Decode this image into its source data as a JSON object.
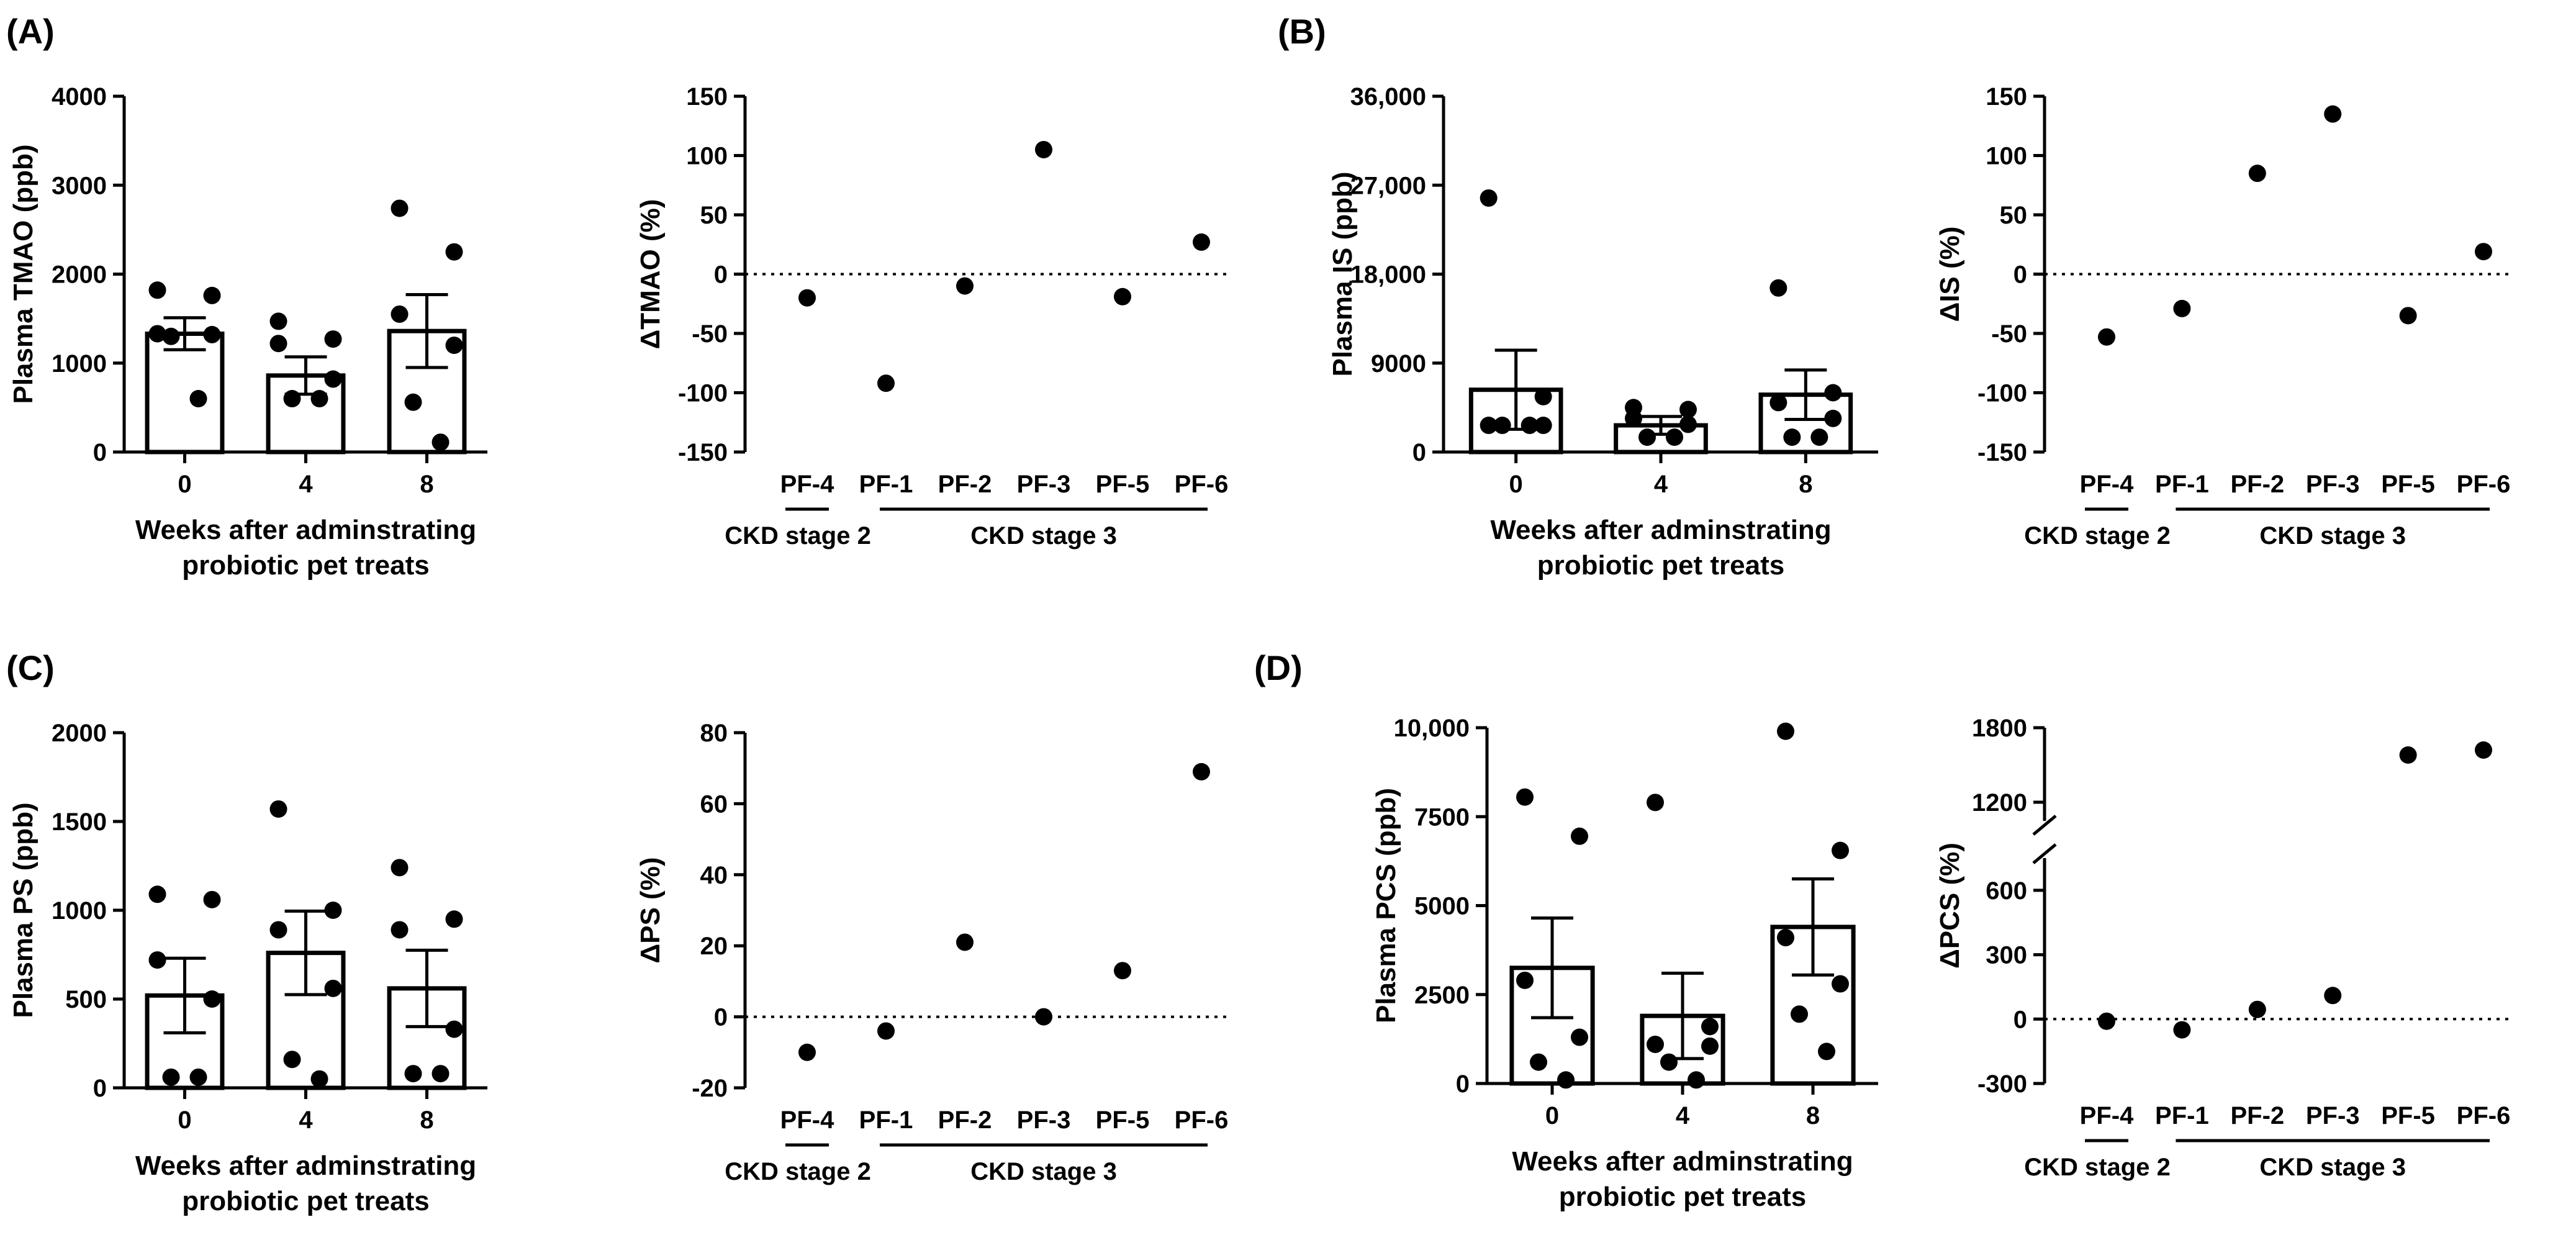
{
  "panels": [
    {
      "letter": "(A)",
      "bar": {
        "ylabel": "Plasma TMAO (ppb)",
        "yticks": [
          "0",
          "1000",
          "2000",
          "3000",
          "4000"
        ],
        "ylim": [
          0,
          4000
        ],
        "categories": [
          "0",
          "4",
          "8"
        ],
        "xlabel": [
          "Weeks after adminstrating",
          "probiotic pet treats"
        ],
        "means": [
          1330,
          860,
          1360
        ],
        "sem": [
          180,
          210,
          410
        ],
        "points": [
          [
            1820,
            1760,
            1330,
            1320,
            1300,
            600
          ],
          [
            1470,
            1270,
            1220,
            820,
            600,
            600
          ],
          [
            2740,
            2250,
            1550,
            1200,
            560,
            110
          ]
        ]
      },
      "delta": {
        "ylabel": "ΔTMAO (%)",
        "yticks": [
          "-150",
          "-100",
          "-50",
          "0",
          "50",
          "100",
          "150"
        ],
        "ylim": [
          -150,
          150
        ],
        "categories": [
          "PF-4",
          "PF-1",
          "PF-2",
          "PF-3",
          "PF-5",
          "PF-6"
        ],
        "values": [
          -20,
          -92,
          -10,
          105,
          -19,
          27
        ],
        "groups": [
          "CKD stage 2",
          "CKD stage 3"
        ]
      }
    },
    {
      "letter": "(B)",
      "bar": {
        "ylabel": "Plasma IS (ppb)",
        "yticks": [
          "0",
          "9000",
          "18,000",
          "27,000",
          "36,000"
        ],
        "ylim": [
          0,
          36000
        ],
        "categories": [
          "0",
          "4",
          "8"
        ],
        "xlabel": [
          "Weeks after adminstrating",
          "probiotic pet treats"
        ],
        "means": [
          6300,
          2700,
          5800
        ],
        "sem": [
          4000,
          900,
          2500
        ],
        "points": [
          [
            25700,
            5600,
            2700,
            2700,
            2700,
            2700
          ],
          [
            4500,
            4300,
            3400,
            2800,
            1500,
            1500
          ],
          [
            16600,
            6000,
            5000,
            3400,
            1500,
            1500
          ]
        ]
      },
      "delta": {
        "ylabel": "ΔIS (%)",
        "yticks": [
          "-150",
          "-100",
          "-50",
          "0",
          "50",
          "100",
          "150"
        ],
        "ylim": [
          -150,
          150
        ],
        "categories": [
          "PF-4",
          "PF-1",
          "PF-2",
          "PF-3",
          "PF-5",
          "PF-6"
        ],
        "values": [
          -53,
          -29,
          85,
          135,
          -35,
          19
        ],
        "groups": [
          "CKD stage 2",
          "CKD stage 3"
        ]
      }
    },
    {
      "letter": "(C)",
      "bar": {
        "ylabel": "Plasma PS (ppb)",
        "yticks": [
          "0",
          "500",
          "1000",
          "1500",
          "2000"
        ],
        "ylim": [
          0,
          2000
        ],
        "categories": [
          "0",
          "4",
          "8"
        ],
        "xlabel": [
          "Weeks after adminstrating",
          "probiotic pet treats"
        ],
        "means": [
          520,
          760,
          560
        ],
        "sem": [
          210,
          235,
          215
        ],
        "points": [
          [
            1090,
            1060,
            720,
            500,
            60,
            60
          ],
          [
            1570,
            1000,
            890,
            560,
            160,
            50
          ],
          [
            1240,
            950,
            890,
            330,
            80,
            80
          ]
        ]
      },
      "delta": {
        "ylabel": "ΔPS (%)",
        "yticks": [
          "-20",
          "0",
          "20",
          "40",
          "60",
          "80"
        ],
        "ylim": [
          -20,
          80
        ],
        "categories": [
          "PF-4",
          "PF-1",
          "PF-2",
          "PF-3",
          "PF-5",
          "PF-6"
        ],
        "values": [
          -10,
          -4,
          21,
          0,
          13,
          69
        ],
        "groups": [
          "CKD stage 2",
          "CKD stage 3"
        ]
      }
    },
    {
      "letter": "(D)",
      "bar": {
        "ylabel": "Plasma PCS (ppb)",
        "yticks": [
          "0",
          "2500",
          "5000",
          "7500",
          "10,000"
        ],
        "ylim": [
          0,
          10000
        ],
        "categories": [
          "0",
          "4",
          "8"
        ],
        "xlabel": [
          "Weeks after adminstrating",
          "probiotic pet treats"
        ],
        "means": [
          3250,
          1900,
          4400
        ],
        "sem": [
          1400,
          1200,
          1350
        ],
        "points": [
          [
            8050,
            6950,
            2900,
            1300,
            600,
            100
          ],
          [
            7900,
            1600,
            1100,
            1050,
            600,
            100
          ],
          [
            9900,
            6550,
            4100,
            2800,
            1950,
            900
          ]
        ]
      },
      "delta": {
        "ylabel": "ΔPCS (%)",
        "yticks_lower": [
          "-300",
          "0",
          "300",
          "600"
        ],
        "lower_range": [
          -300,
          750
        ],
        "yticks_upper": [
          "1200",
          "1800"
        ],
        "upper_range": [
          1050,
          1800
        ],
        "categories": [
          "PF-4",
          "PF-1",
          "PF-2",
          "PF-3",
          "PF-5",
          "PF-6"
        ],
        "values": [
          -10,
          -50,
          45,
          110,
          1580,
          1620
        ],
        "groups": [
          "CKD stage 2",
          "CKD stage 3"
        ]
      }
    }
  ],
  "chart_data": [
    {
      "type": "bar",
      "title": "(A)",
      "ylabel": "Plasma TMAO (ppb)",
      "xlabel": "Weeks after adminstrating probiotic pet treats",
      "categories": [
        "0",
        "4",
        "8"
      ],
      "values": [
        1330,
        860,
        1360
      ],
      "sem": [
        180,
        210,
        410
      ],
      "ylim": [
        0,
        4000
      ],
      "points": [
        [
          1820,
          1760,
          1330,
          1320,
          1300,
          600
        ],
        [
          1470,
          1270,
          1220,
          820,
          600,
          600
        ],
        [
          2740,
          2250,
          1550,
          1200,
          560,
          110
        ]
      ]
    },
    {
      "type": "scatter",
      "title": "(A)",
      "ylabel": "ΔTMAO (%)",
      "categories": [
        "PF-4",
        "PF-1",
        "PF-2",
        "PF-3",
        "PF-5",
        "PF-6"
      ],
      "values": [
        -20,
        -92,
        -10,
        105,
        -19,
        27
      ],
      "ylim": [
        -150,
        150
      ],
      "groups": [
        "CKD stage 2",
        "CKD stage 3"
      ]
    },
    {
      "type": "bar",
      "title": "(B)",
      "ylabel": "Plasma IS (ppb)",
      "xlabel": "Weeks after adminstrating probiotic pet treats",
      "categories": [
        "0",
        "4",
        "8"
      ],
      "values": [
        6300,
        2700,
        5800
      ],
      "sem": [
        4000,
        900,
        2500
      ],
      "ylim": [
        0,
        36000
      ],
      "points": [
        [
          25700,
          5600,
          2700,
          2700,
          2700,
          2700
        ],
        [
          4500,
          4300,
          3400,
          2800,
          1500,
          1500
        ],
        [
          16600,
          6000,
          5000,
          3400,
          1500,
          1500
        ]
      ]
    },
    {
      "type": "scatter",
      "title": "(B)",
      "ylabel": "ΔIS (%)",
      "categories": [
        "PF-4",
        "PF-1",
        "PF-2",
        "PF-3",
        "PF-5",
        "PF-6"
      ],
      "values": [
        -53,
        -29,
        85,
        135,
        -35,
        19
      ],
      "ylim": [
        -150,
        150
      ],
      "groups": [
        "CKD stage 2",
        "CKD stage 3"
      ]
    },
    {
      "type": "bar",
      "title": "(C)",
      "ylabel": "Plasma PS (ppb)",
      "xlabel": "Weeks after adminstrating probiotic pet treats",
      "categories": [
        "0",
        "4",
        "8"
      ],
      "values": [
        520,
        760,
        560
      ],
      "sem": [
        210,
        235,
        215
      ],
      "ylim": [
        0,
        2000
      ],
      "points": [
        [
          1090,
          1060,
          720,
          500,
          60,
          60
        ],
        [
          1570,
          1000,
          890,
          560,
          160,
          50
        ],
        [
          1240,
          950,
          890,
          330,
          80,
          80
        ]
      ]
    },
    {
      "type": "scatter",
      "title": "(C)",
      "ylabel": "ΔPS (%)",
      "categories": [
        "PF-4",
        "PF-1",
        "PF-2",
        "PF-3",
        "PF-5",
        "PF-6"
      ],
      "values": [
        -10,
        -4,
        21,
        0,
        13,
        69
      ],
      "ylim": [
        -20,
        80
      ],
      "groups": [
        "CKD stage 2",
        "CKD stage 3"
      ]
    },
    {
      "type": "bar",
      "title": "(D)",
      "ylabel": "Plasma PCS (ppb)",
      "xlabel": "Weeks after adminstrating probiotic pet treats",
      "categories": [
        "0",
        "4",
        "8"
      ],
      "values": [
        3250,
        1900,
        4400
      ],
      "sem": [
        1400,
        1200,
        1350
      ],
      "ylim": [
        0,
        10000
      ],
      "points": [
        [
          8050,
          6950,
          2900,
          1300,
          600,
          100
        ],
        [
          7900,
          1600,
          1100,
          1050,
          600,
          100
        ],
        [
          9900,
          6550,
          4100,
          2800,
          1950,
          900
        ]
      ]
    },
    {
      "type": "scatter",
      "title": "(D)",
      "ylabel": "ΔPCS (%)",
      "categories": [
        "PF-4",
        "PF-1",
        "PF-2",
        "PF-3",
        "PF-5",
        "PF-6"
      ],
      "values": [
        -10,
        -50,
        45,
        110,
        1580,
        1620
      ],
      "ylim": [
        -300,
        1800
      ],
      "axis_break": [
        750,
        1050
      ],
      "groups": [
        "CKD stage 2",
        "CKD stage 3"
      ]
    }
  ]
}
